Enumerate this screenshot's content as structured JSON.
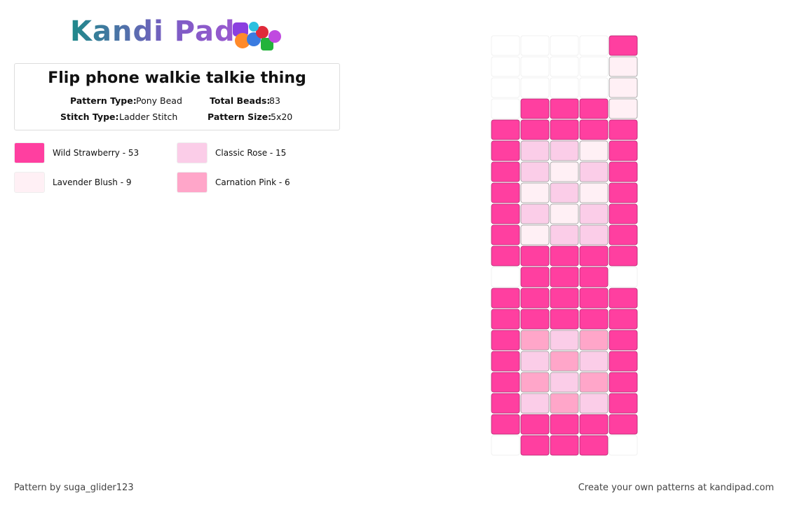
{
  "header": {
    "logo": "Kandi Pad"
  },
  "info": {
    "title": "Flip phone walkie talkie thing",
    "fields": [
      {
        "label": "Pattern Type:",
        "value": "Pony Bead"
      },
      {
        "label": "Total Beads:",
        "value": "83"
      },
      {
        "label": "Stitch Type:",
        "value": "Ladder Stitch"
      },
      {
        "label": "Pattern Size:",
        "value": "5x20"
      }
    ]
  },
  "legend": [
    {
      "label": "Wild Strawberry - 53",
      "color": "#ff3fa0"
    },
    {
      "label": "Classic Rose - 15",
      "color": "#fbcde8"
    },
    {
      "label": "Lavender Blush - 9",
      "color": "#fff0f5"
    },
    {
      "label": "Carnation Pink - 6",
      "color": "#ffa6c9"
    }
  ],
  "pattern": {
    "rows": [
      [
        null,
        null,
        null,
        null,
        0
      ],
      [
        null,
        null,
        null,
        null,
        2
      ],
      [
        null,
        null,
        null,
        null,
        2
      ],
      [
        null,
        0,
        0,
        0,
        2
      ],
      [
        0,
        0,
        0,
        0,
        0
      ],
      [
        0,
        1,
        1,
        2,
        0
      ],
      [
        0,
        1,
        2,
        1,
        0
      ],
      [
        0,
        2,
        1,
        2,
        0
      ],
      [
        0,
        1,
        2,
        1,
        0
      ],
      [
        0,
        2,
        1,
        1,
        0
      ],
      [
        0,
        0,
        0,
        0,
        0
      ],
      [
        null,
        0,
        0,
        0,
        null
      ],
      [
        0,
        0,
        0,
        0,
        0
      ],
      [
        0,
        0,
        0,
        0,
        0
      ],
      [
        0,
        3,
        1,
        3,
        0
      ],
      [
        0,
        1,
        3,
        1,
        0
      ],
      [
        0,
        3,
        1,
        3,
        0
      ],
      [
        0,
        1,
        3,
        1,
        0
      ],
      [
        0,
        0,
        0,
        0,
        0
      ],
      [
        null,
        0,
        0,
        0,
        null
      ]
    ]
  },
  "footer": {
    "left": "Pattern by suga_glider123",
    "right": "Create your own patterns at kandipad.com"
  }
}
